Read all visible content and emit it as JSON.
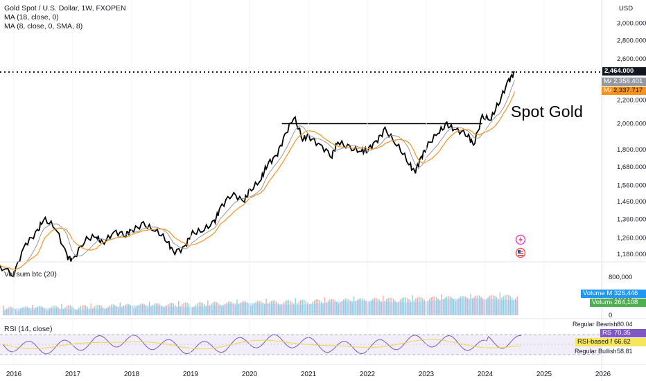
{
  "header": {
    "symbol_line": "Gold Spot / U.S. Dollar, 1W, FXOPEN",
    "ma1_line": "MA (18, close, 0)",
    "ma2_line": "MA (8, close, 0, SMA, 8)",
    "currency": "USD"
  },
  "annotation": "Spot Gold",
  "price_axis": {
    "ticks": [
      "3,000.000",
      "2,800.000",
      "2,600.000",
      "2,200.000",
      "2,000.000",
      "1,800.000",
      "1,680.000",
      "1,560.000",
      "1,460.000",
      "1,360.000",
      "1,260.000",
      "1,180.000"
    ],
    "last_price": "2,464.000",
    "ma_tags": [
      {
        "name": "MA",
        "value": "2,358.401",
        "color": "#9598a1"
      },
      {
        "name": "MA",
        "value": "2,337.717",
        "color": "#f7931a"
      }
    ]
  },
  "volume_pane": {
    "title": "Vol sum btc (20)",
    "ticks": [
      "800,000",
      "400,000",
      "0"
    ],
    "volume_ma": {
      "name": "Volume MA",
      "value": "326,446"
    },
    "volume": {
      "name": "Volume",
      "value": "264,108"
    }
  },
  "rsi_pane": {
    "title": "RSI (14, close)",
    "regular_bearish": {
      "name": "Regular Bearish",
      "value": "80.04"
    },
    "rsi": {
      "name": "RSI",
      "value": "70.35"
    },
    "rsi_ma": {
      "name": "RSI-based MA",
      "value": "66.62"
    },
    "regular_bullish": {
      "name": "Regular Bullish",
      "value": "58.81"
    }
  },
  "time_axis": [
    "2016",
    "2017",
    "2018",
    "2019",
    "2020",
    "2021",
    "2022",
    "2023",
    "2024",
    "2025",
    "2026"
  ],
  "colors": {
    "price": "#000000",
    "ma_slow": "#f7931a",
    "ma_fast": "#9598a1",
    "volume_ma": "#90caf9",
    "rsi": "#7e57c2",
    "rsi_ma": "#f5d442",
    "volume_up": "#26a69a",
    "volume_down": "#ef5350",
    "volume_tag": "#2196f3",
    "volume_tag2": "#4caf50"
  },
  "chart_data": {
    "type": "line",
    "price_series": {
      "name": "Gold Spot / U.S. Dollar",
      "x": [
        2015.7,
        2016.0,
        2016.2,
        2016.4,
        2016.5,
        2016.7,
        2016.9,
        2017.0,
        2017.2,
        2017.4,
        2017.5,
        2017.7,
        2017.9,
        2018.0,
        2018.2,
        2018.4,
        2018.6,
        2018.7,
        2018.9,
        2019.0,
        2019.2,
        2019.4,
        2019.5,
        2019.7,
        2019.9,
        2020.0,
        2020.2,
        2020.3,
        2020.45,
        2020.6,
        2020.75,
        2020.9,
        2021.0,
        2021.2,
        2021.4,
        2021.5,
        2021.7,
        2021.9,
        2022.0,
        2022.15,
        2022.3,
        2022.5,
        2022.7,
        2022.8,
        2022.9,
        2023.0,
        2023.2,
        2023.35,
        2023.5,
        2023.7,
        2023.8,
        2023.95,
        2024.1,
        2024.25,
        2024.4,
        2024.5
      ],
      "y": [
        1130,
        1090,
        1230,
        1290,
        1360,
        1320,
        1170,
        1150,
        1250,
        1270,
        1230,
        1290,
        1280,
        1300,
        1330,
        1300,
        1250,
        1190,
        1210,
        1280,
        1300,
        1340,
        1420,
        1510,
        1460,
        1520,
        1600,
        1700,
        1750,
        1900,
        2060,
        1880,
        1900,
        1830,
        1760,
        1860,
        1810,
        1790,
        1800,
        1860,
        1950,
        1840,
        1710,
        1640,
        1730,
        1820,
        1930,
        1990,
        1950,
        1920,
        1830,
        2050,
        2040,
        2200,
        2380,
        2464
      ]
    },
    "ma_values_last": {
      "ma_18": 2358.401,
      "ma_8_sma": 2337.717
    },
    "horizontal_levels": [
      {
        "name": "resistance",
        "y": 2000
      },
      {
        "name": "last price",
        "y": 2464
      }
    ],
    "volume_last": {
      "volume_ma": 326446,
      "volume": 264108
    },
    "rsi_last": {
      "rsi": 70.35,
      "rsi_ma": 66.62
    },
    "ylabel": "USD",
    "log_scale": true
  }
}
